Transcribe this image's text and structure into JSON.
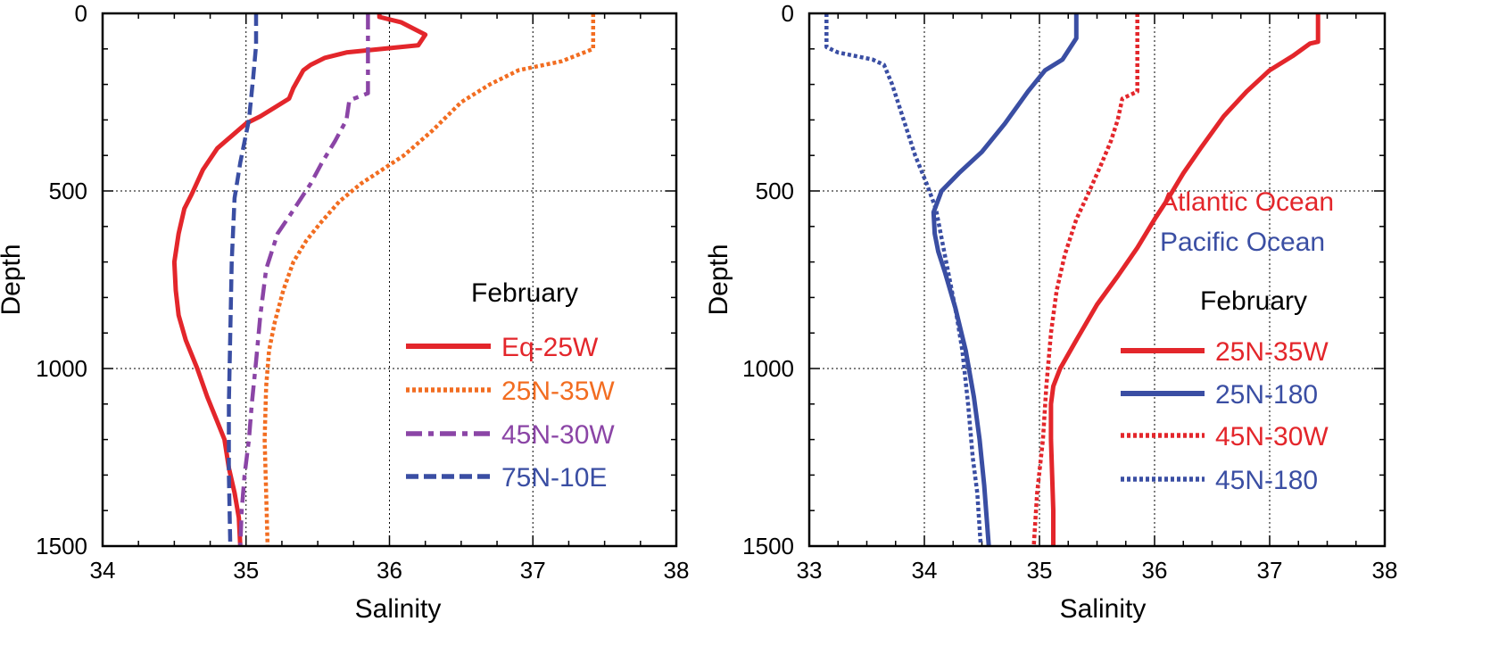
{
  "chart_data": [
    {
      "type": "line",
      "title": "",
      "xlabel": "Salinity",
      "ylabel": "Depth",
      "xlim": [
        34,
        38
      ],
      "ylim": [
        0,
        1500
      ],
      "y_inverted": true,
      "xticks": [
        "34",
        "35",
        "36",
        "37",
        "38"
      ],
      "yticks": [
        "0",
        "500",
        "1000",
        "1500"
      ],
      "grid": "dotted",
      "legend_title": "February",
      "legend_position": "right",
      "series": [
        {
          "name": "Eq-25W",
          "color": "#e3262b",
          "dash": "solid",
          "points": [
            [
              35.93,
              0
            ],
            [
              35.93,
              10
            ],
            [
              36.08,
              25
            ],
            [
              36.25,
              60
            ],
            [
              36.2,
              90
            ],
            [
              35.95,
              100
            ],
            [
              35.7,
              110
            ],
            [
              35.55,
              125
            ],
            [
              35.45,
              145
            ],
            [
              35.4,
              160
            ],
            [
              35.33,
              210
            ],
            [
              35.3,
              240
            ],
            [
              35.22,
              260
            ],
            [
              35.1,
              290
            ],
            [
              35.0,
              310
            ],
            [
              34.9,
              345
            ],
            [
              34.8,
              380
            ],
            [
              34.7,
              440
            ],
            [
              34.62,
              510
            ],
            [
              34.57,
              550
            ],
            [
              34.53,
              620
            ],
            [
              34.5,
              700
            ],
            [
              34.51,
              780
            ],
            [
              34.53,
              850
            ],
            [
              34.58,
              920
            ],
            [
              34.66,
              1000
            ],
            [
              34.73,
              1080
            ],
            [
              34.8,
              1150
            ],
            [
              34.85,
              1200
            ],
            [
              34.88,
              1280
            ],
            [
              34.92,
              1350
            ],
            [
              34.95,
              1420
            ],
            [
              34.96,
              1500
            ]
          ]
        },
        {
          "name": "25N-35W",
          "color": "#f26d21",
          "dash": "dotted",
          "points": [
            [
              37.42,
              0
            ],
            [
              37.42,
              100
            ],
            [
              37.2,
              135
            ],
            [
              36.9,
              160
            ],
            [
              36.7,
              200
            ],
            [
              36.5,
              250
            ],
            [
              36.3,
              330
            ],
            [
              36.1,
              400
            ],
            [
              35.95,
              440
            ],
            [
              35.8,
              480
            ],
            [
              35.65,
              530
            ],
            [
              35.52,
              590
            ],
            [
              35.42,
              640
            ],
            [
              35.33,
              700
            ],
            [
              35.26,
              780
            ],
            [
              35.2,
              870
            ],
            [
              35.16,
              950
            ],
            [
              35.14,
              1050
            ],
            [
              35.13,
              1200
            ],
            [
              35.14,
              1350
            ],
            [
              35.15,
              1500
            ]
          ]
        },
        {
          "name": "45N-30W",
          "color": "#8b45a6",
          "dash": "dashdot",
          "points": [
            [
              35.85,
              0
            ],
            [
              35.85,
              225
            ],
            [
              35.72,
              245
            ],
            [
              35.7,
              300
            ],
            [
              35.62,
              360
            ],
            [
              35.53,
              420
            ],
            [
              35.45,
              480
            ],
            [
              35.32,
              560
            ],
            [
              35.22,
              620
            ],
            [
              35.14,
              720
            ],
            [
              35.1,
              850
            ],
            [
              35.07,
              980
            ],
            [
              35.04,
              1100
            ],
            [
              35.02,
              1200
            ],
            [
              34.99,
              1300
            ],
            [
              34.97,
              1400
            ],
            [
              34.96,
              1500
            ]
          ]
        },
        {
          "name": "75N-10E",
          "color": "#3a4ea3",
          "dash": "dashed",
          "points": [
            [
              35.07,
              0
            ],
            [
              35.07,
              90
            ],
            [
              35.05,
              180
            ],
            [
              35.02,
              300
            ],
            [
              34.96,
              420
            ],
            [
              34.92,
              520
            ],
            [
              34.9,
              700
            ],
            [
              34.89,
              900
            ],
            [
              34.88,
              1100
            ],
            [
              34.88,
              1300
            ],
            [
              34.89,
              1500
            ]
          ]
        }
      ]
    },
    {
      "type": "line",
      "title": "",
      "xlabel": "Salinity",
      "ylabel": "Depth",
      "xlim": [
        33,
        38
      ],
      "ylim": [
        0,
        1500
      ],
      "y_inverted": true,
      "xticks": [
        "33",
        "34",
        "35",
        "36",
        "37",
        "38"
      ],
      "yticks": [
        "0",
        "500",
        "1000",
        "1500"
      ],
      "grid": "dotted",
      "annotations": [
        {
          "text": "Atlantic Ocean",
          "color": "#e3262b"
        },
        {
          "text": "Pacific Ocean",
          "color": "#3a4ea3"
        }
      ],
      "legend_title": "February",
      "legend_position": "right",
      "series": [
        {
          "name": "25N-35W",
          "color": "#e3262b",
          "dash": "solid",
          "points": [
            [
              37.42,
              0
            ],
            [
              37.42,
              80
            ],
            [
              37.35,
              85
            ],
            [
              37.2,
              120
            ],
            [
              37.0,
              160
            ],
            [
              36.8,
              220
            ],
            [
              36.6,
              290
            ],
            [
              36.4,
              380
            ],
            [
              36.25,
              450
            ],
            [
              36.12,
              520
            ],
            [
              36.0,
              580
            ],
            [
              35.85,
              660
            ],
            [
              35.68,
              740
            ],
            [
              35.5,
              820
            ],
            [
              35.32,
              920
            ],
            [
              35.18,
              1000
            ],
            [
              35.12,
              1050
            ],
            [
              35.1,
              1100
            ],
            [
              35.1,
              1200
            ],
            [
              35.11,
              1300
            ],
            [
              35.12,
              1400
            ],
            [
              35.12,
              1500
            ]
          ]
        },
        {
          "name": "25N-180",
          "color": "#3a4ea3",
          "dash": "solid",
          "points": [
            [
              35.32,
              0
            ],
            [
              35.32,
              70
            ],
            [
              35.2,
              130
            ],
            [
              35.05,
              160
            ],
            [
              34.9,
              220
            ],
            [
              34.7,
              310
            ],
            [
              34.5,
              390
            ],
            [
              34.3,
              450
            ],
            [
              34.15,
              500
            ],
            [
              34.08,
              560
            ],
            [
              34.09,
              620
            ],
            [
              34.12,
              670
            ],
            [
              34.18,
              730
            ],
            [
              34.27,
              830
            ],
            [
              34.36,
              950
            ],
            [
              34.43,
              1080
            ],
            [
              34.48,
              1200
            ],
            [
              34.52,
              1330
            ],
            [
              34.56,
              1500
            ]
          ]
        },
        {
          "name": "45N-30W",
          "color": "#e3262b",
          "dash": "dotted",
          "points": [
            [
              35.85,
              0
            ],
            [
              35.85,
              220
            ],
            [
              35.72,
              240
            ],
            [
              35.68,
              300
            ],
            [
              35.62,
              360
            ],
            [
              35.53,
              430
            ],
            [
              35.42,
              510
            ],
            [
              35.32,
              580
            ],
            [
              35.22,
              680
            ],
            [
              35.15,
              780
            ],
            [
              35.1,
              900
            ],
            [
              35.06,
              1050
            ],
            [
              35.03,
              1200
            ],
            [
              34.98,
              1350
            ],
            [
              34.95,
              1500
            ]
          ]
        },
        {
          "name": "45N-180",
          "color": "#3a4ea3",
          "dash": "dotted",
          "points": [
            [
              33.15,
              0
            ],
            [
              33.15,
              95
            ],
            [
              33.25,
              110
            ],
            [
              33.55,
              130
            ],
            [
              33.65,
              145
            ],
            [
              33.72,
              200
            ],
            [
              33.82,
              300
            ],
            [
              33.92,
              400
            ],
            [
              34.02,
              480
            ],
            [
              34.1,
              550
            ],
            [
              34.16,
              650
            ],
            [
              34.22,
              750
            ],
            [
              34.28,
              850
            ],
            [
              34.33,
              950
            ],
            [
              34.38,
              1100
            ],
            [
              34.42,
              1250
            ],
            [
              34.46,
              1350
            ],
            [
              34.49,
              1500
            ]
          ]
        }
      ]
    }
  ]
}
